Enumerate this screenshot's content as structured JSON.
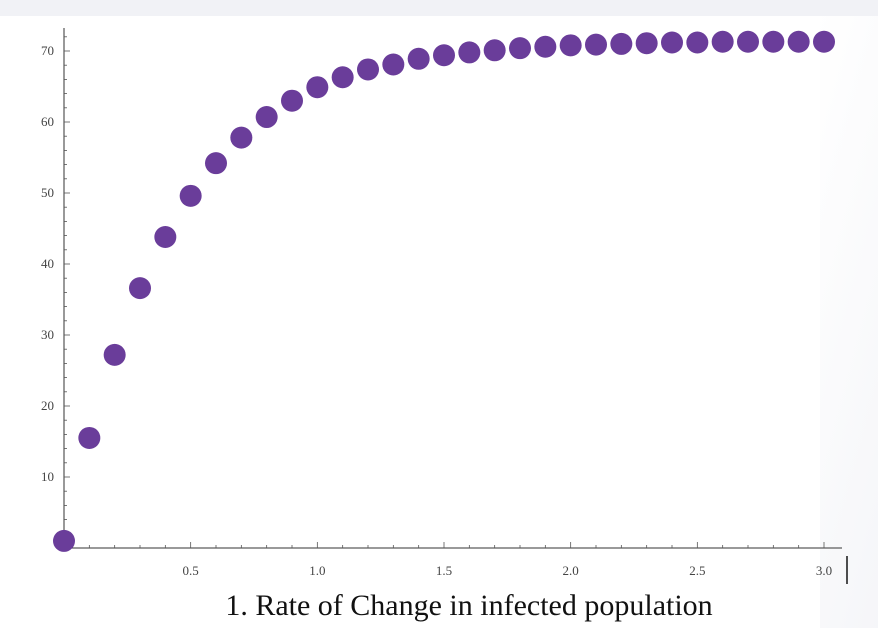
{
  "caption": "1. Rate of Change in infected population",
  "chart_data": {
    "type": "scatter",
    "title": "1. Rate of Change in infected population",
    "xlabel": "",
    "ylabel": "",
    "xlim": [
      0,
      3.0
    ],
    "ylim": [
      0,
      72
    ],
    "x_ticks": [
      {
        "value": 0.5,
        "label": "0.5"
      },
      {
        "value": 1.0,
        "label": "1.0"
      },
      {
        "value": 1.5,
        "label": "1.5"
      },
      {
        "value": 2.0,
        "label": "2.0"
      },
      {
        "value": 2.5,
        "label": "2.5"
      },
      {
        "value": 3.0,
        "label": "3.0"
      }
    ],
    "y_ticks": [
      {
        "value": 10,
        "label": "10"
      },
      {
        "value": 20,
        "label": "20"
      },
      {
        "value": 30,
        "label": "30"
      },
      {
        "value": 40,
        "label": "40"
      },
      {
        "value": 50,
        "label": "50"
      },
      {
        "value": 60,
        "label": "60"
      },
      {
        "value": 70,
        "label": "70"
      }
    ],
    "grid": false,
    "series": [
      {
        "color": "#6a3d9a",
        "x": [
          0.0,
          0.1,
          0.2,
          0.3,
          0.4,
          0.5,
          0.6,
          0.7,
          0.8,
          0.9,
          1.0,
          1.1,
          1.2,
          1.3,
          1.4,
          1.5,
          1.6,
          1.7,
          1.8,
          1.9,
          2.0,
          2.1,
          2.2,
          2.3,
          2.4,
          2.5,
          2.6,
          2.7,
          2.8,
          2.9,
          3.0
        ],
        "y": [
          1.0,
          15.5,
          27.2,
          36.6,
          43.8,
          49.6,
          54.2,
          57.8,
          60.7,
          63.0,
          64.9,
          66.3,
          67.4,
          68.1,
          68.9,
          69.4,
          69.8,
          70.1,
          70.4,
          70.6,
          70.8,
          70.9,
          71.0,
          71.1,
          71.2,
          71.2,
          71.3,
          71.3,
          71.3,
          71.3,
          71.3
        ]
      }
    ]
  }
}
